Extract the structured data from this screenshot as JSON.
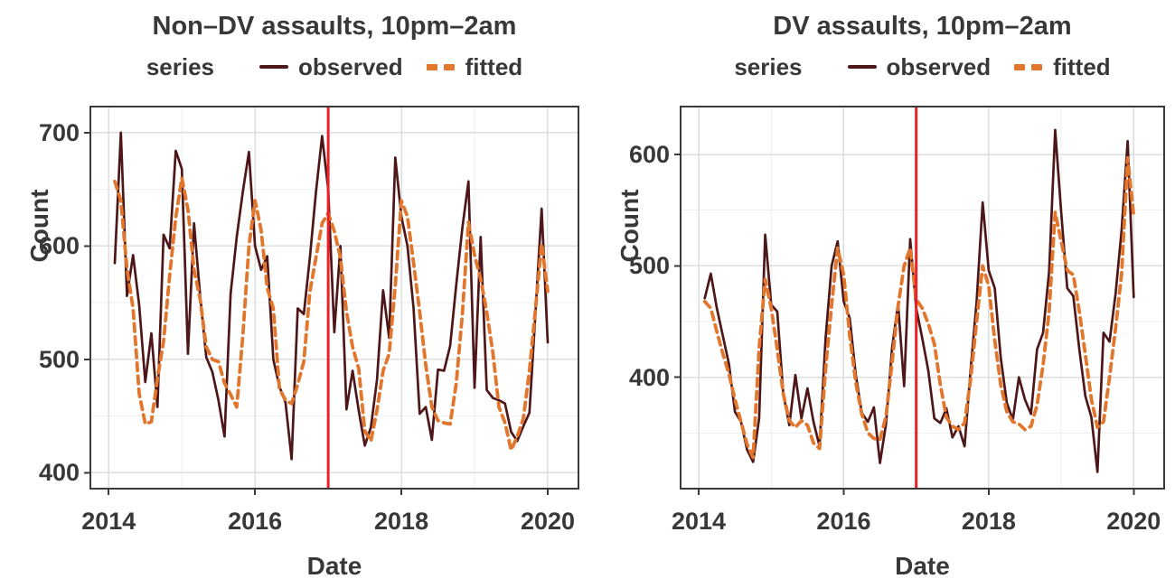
{
  "figure_type": "two-panel time-series line chart (observed vs fitted monthly assault counts)",
  "colors": {
    "observed_line": "#4d1619",
    "fitted_line": "#e1762c",
    "intervention_vline": "#ee2026",
    "grid_major": "#dedede",
    "grid_minor": "#efefef",
    "panel_border": "#3a3a3a",
    "tick_mark": "#3a3a3a",
    "text": "#383838",
    "background": "#ffffff"
  },
  "chart_data": [
    {
      "type": "line",
      "title": "Non–DV assaults, 10pm–2am",
      "legend_title": "series",
      "xlabel": "Date",
      "ylabel": "Count",
      "x_start": "2014-02",
      "x_end": "2020-01",
      "frequency": "monthly",
      "xlim": [
        2013.75,
        2020.42
      ],
      "ylim": [
        386,
        723
      ],
      "x_tick_values": [
        2014,
        2016,
        2018,
        2020
      ],
      "x_tick_labels": [
        "2014",
        "2016",
        "2018",
        "2020"
      ],
      "x_minor_ticks": [
        2015,
        2017,
        2019
      ],
      "y_tick_values": [
        400,
        500,
        600,
        700
      ],
      "y_tick_labels": [
        "400",
        "500",
        "600",
        "700"
      ],
      "y_minor_ticks": [
        450,
        550,
        650
      ],
      "vline_x": 2017,
      "series": [
        {
          "name": "observed",
          "style": "solid",
          "values": [
            585,
            700,
            556,
            592,
            548,
            480,
            523,
            458,
            610,
            598,
            684,
            668,
            505,
            620,
            556,
            502,
            489,
            464,
            432,
            558,
            608,
            648,
            683,
            600,
            579,
            591,
            500,
            476,
            462,
            412,
            545,
            540,
            590,
            648,
            697,
            650,
            524,
            600,
            456,
            490,
            455,
            424,
            440,
            482,
            561,
            519,
            678,
            626,
            600,
            545,
            452,
            458,
            429,
            491,
            490,
            512,
            566,
            616,
            657,
            475,
            608,
            473,
            466,
            464,
            461,
            436,
            428,
            441,
            453,
            542,
            633,
            515
          ]
        },
        {
          "name": "fitted",
          "style": "dashed",
          "values": [
            657,
            640,
            580,
            545,
            470,
            443,
            445,
            483,
            516,
            574,
            625,
            660,
            632,
            579,
            553,
            511,
            500,
            498,
            479,
            469,
            458,
            521,
            600,
            640,
            614,
            563,
            545,
            474,
            464,
            461,
            478,
            498,
            560,
            590,
            620,
            629,
            613,
            590,
            542,
            511,
            492,
            437,
            428,
            455,
            490,
            505,
            565,
            640,
            626,
            585,
            542,
            495,
            458,
            446,
            444,
            443,
            479,
            540,
            621,
            592,
            571,
            542,
            506,
            458,
            444,
            420,
            432,
            448,
            490,
            545,
            602,
            560
          ]
        }
      ]
    },
    {
      "type": "line",
      "title": "DV assaults, 10pm–2am",
      "legend_title": "series",
      "xlabel": "Date",
      "ylabel": "Count",
      "x_start": "2014-02",
      "x_end": "2020-01",
      "frequency": "monthly",
      "xlim": [
        2013.75,
        2020.42
      ],
      "ylim": [
        300,
        643
      ],
      "x_tick_values": [
        2014,
        2016,
        2018,
        2020
      ],
      "x_tick_labels": [
        "2014",
        "2016",
        "2018",
        "2020"
      ],
      "x_minor_ticks": [
        2015,
        2017,
        2019
      ],
      "y_tick_values": [
        400,
        500,
        600
      ],
      "y_tick_labels": [
        "400",
        "500",
        "600"
      ],
      "y_minor_ticks": [
        350,
        450,
        550
      ],
      "vline_x": 2017,
      "series": [
        {
          "name": "observed",
          "style": "solid",
          "values": [
            471,
            493,
            462,
            437,
            412,
            369,
            360,
            335,
            324,
            363,
            528,
            465,
            459,
            385,
            357,
            402,
            363,
            390,
            360,
            338,
            435,
            500,
            522,
            468,
            453,
            402,
            368,
            360,
            373,
            323,
            358,
            426,
            466,
            392,
            524,
            462,
            435,
            406,
            363,
            359,
            372,
            346,
            356,
            338,
            406,
            468,
            557,
            496,
            480,
            417,
            377,
            362,
            400,
            380,
            367,
            425,
            440,
            495,
            622,
            548,
            480,
            473,
            425,
            383,
            364,
            315,
            440,
            432,
            475,
            532,
            612,
            472
          ]
        },
        {
          "name": "fitted",
          "style": "dashed",
          "values": [
            468,
            462,
            441,
            421,
            403,
            380,
            360,
            340,
            328,
            426,
            488,
            462,
            425,
            385,
            361,
            355,
            361,
            357,
            341,
            336,
            407,
            465,
            516,
            492,
            437,
            395,
            367,
            350,
            345,
            344,
            365,
            413,
            464,
            500,
            516,
            470,
            462,
            448,
            430,
            393,
            364,
            356,
            353,
            359,
            398,
            450,
            500,
            482,
            433,
            393,
            369,
            360,
            358,
            353,
            356,
            375,
            411,
            459,
            548,
            522,
            496,
            492,
            459,
            420,
            380,
            355,
            360,
            400,
            444,
            493,
            597,
            545
          ]
        }
      ]
    }
  ]
}
